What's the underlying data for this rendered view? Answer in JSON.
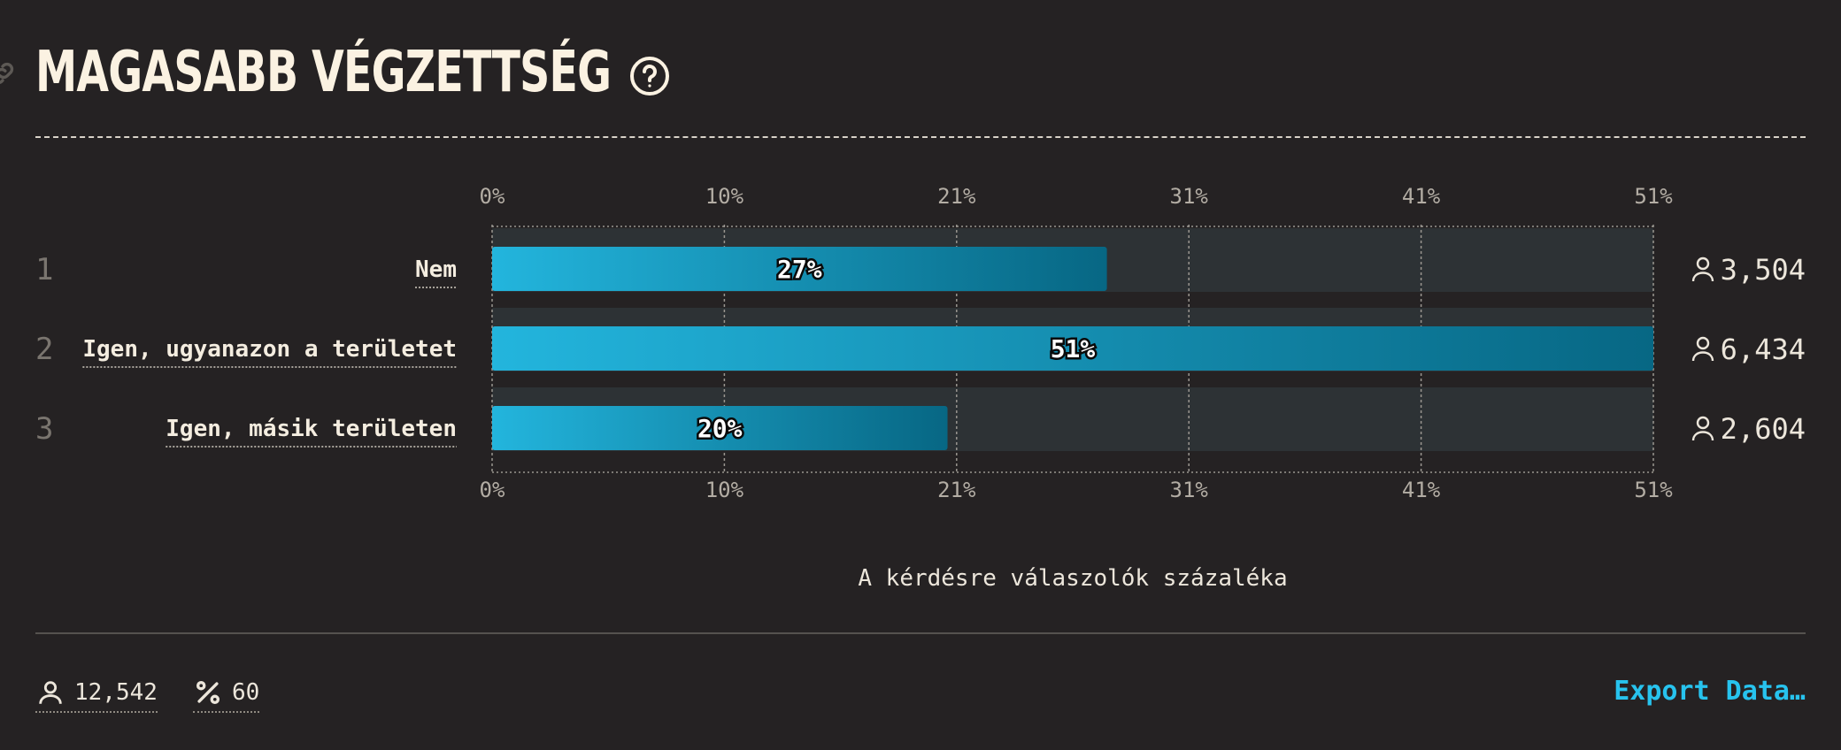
{
  "title": "MAGASABB VÉGZETTSÉG",
  "icons": {
    "link": "link-icon",
    "help": "help-circle-icon",
    "respondents": "person-icon",
    "percent": "percent-icon"
  },
  "colors": {
    "background": "#252223",
    "bar_start": "#23b5dd",
    "bar_end": "#076784",
    "track": "#2d3235",
    "accent": "#27c3ee"
  },
  "chart_data": {
    "type": "bar",
    "orientation": "horizontal",
    "categories": [
      "Nem",
      "Igen, ugyanazon a területet",
      "Igen, másik területen"
    ],
    "ranks": [
      "1",
      "2",
      "3"
    ],
    "values": [
      27,
      51,
      20
    ],
    "value_labels": [
      "27%",
      "51%",
      "20%"
    ],
    "counts": [
      "3,504",
      "6,434",
      "2,604"
    ],
    "xticks": [
      "0%",
      "10%",
      "21%",
      "31%",
      "41%",
      "51%"
    ],
    "xlim": [
      0,
      51
    ],
    "xlabel": "A kérdésre válaszolók százaléka",
    "grid": true
  },
  "footer": {
    "total_respondents": "12,542",
    "percent_value": "60",
    "export_label": "Export Data…"
  }
}
